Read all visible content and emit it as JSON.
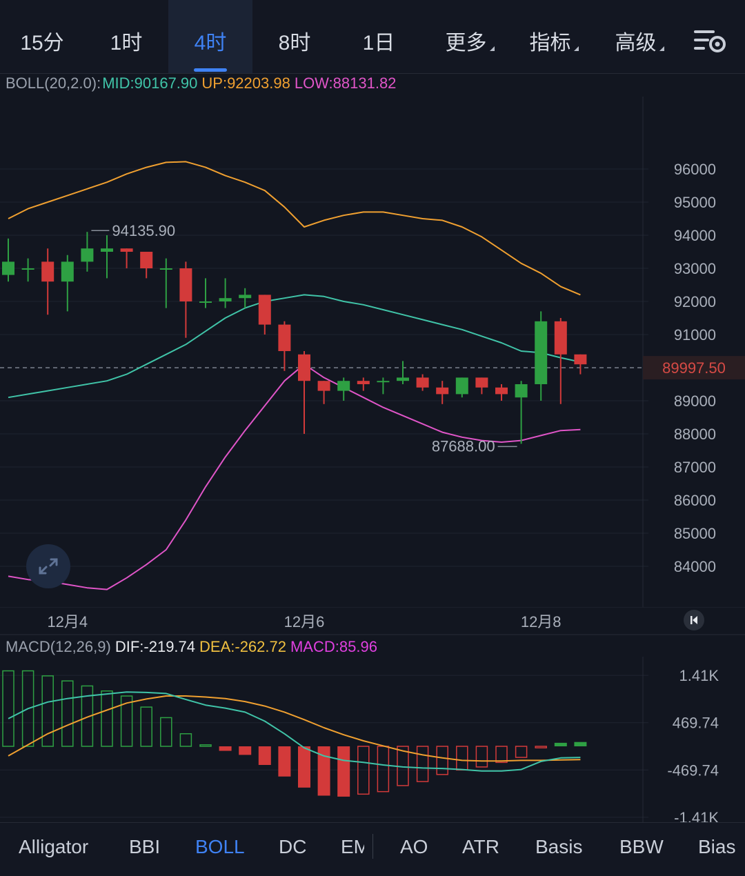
{
  "tabs": [
    {
      "label": "15分",
      "active": false,
      "has_caret": false
    },
    {
      "label": "1时",
      "active": false,
      "has_caret": false
    },
    {
      "label": "4时",
      "active": true,
      "has_caret": false
    },
    {
      "label": "8时",
      "active": false,
      "has_caret": false
    },
    {
      "label": "1日",
      "active": false,
      "has_caret": false
    },
    {
      "label": "更多",
      "active": false,
      "has_caret": true
    },
    {
      "label": "指标",
      "active": false,
      "has_caret": true
    },
    {
      "label": "高级",
      "active": false,
      "has_caret": true
    }
  ],
  "boll_legend": {
    "name": "BOLL(20,2.0):",
    "mid": "MID:90167.90",
    "up": "UP:92203.98",
    "low": "LOW:88131.82"
  },
  "macd_legend": {
    "name": "MACD(12,26,9)",
    "dif": "DIF:-219.74",
    "dea": "DEA:-262.72",
    "macd": "MACD:85.96"
  },
  "colors": {
    "up": "#2ea043",
    "down": "#d33a3a",
    "mid": "#40c4a8",
    "upper": "#f0a030",
    "lower": "#e055c8",
    "accent": "#3f82f4",
    "dif": "#40c4a8",
    "dea": "#f0a030"
  },
  "indicators": [
    {
      "label": "Alligator",
      "active": false
    },
    {
      "label": "BBI",
      "active": false
    },
    {
      "label": "BOLL",
      "active": true
    },
    {
      "label": "DC",
      "active": false
    },
    {
      "label": "EM",
      "active": false
    },
    {
      "label": "AO",
      "active": false
    },
    {
      "label": "ATR",
      "active": false
    },
    {
      "label": "Basis",
      "active": false
    },
    {
      "label": "BBW",
      "active": false
    },
    {
      "label": "Bias",
      "active": false
    }
  ],
  "chart_data": [
    {
      "type": "candlestick",
      "title": "BOLL(20,2.0)",
      "y_ticks": [
        96000,
        95000,
        94000,
        93000,
        92000,
        91000,
        89000,
        88000,
        87000,
        86000,
        85000,
        84000
      ],
      "x_labels": [
        "12月4",
        "12月6",
        "12月8"
      ],
      "current_price": "89997.50",
      "high_marker": "94135.90",
      "low_marker": "87688.00",
      "candles": [
        {
          "o": 92800,
          "h": 93900,
          "l": 92600,
          "c": 93200
        },
        {
          "o": 93000,
          "h": 93300,
          "l": 92600,
          "c": 93000
        },
        {
          "o": 93200,
          "h": 93600,
          "l": 91600,
          "c": 92600
        },
        {
          "o": 92600,
          "h": 93400,
          "l": 91700,
          "c": 93200
        },
        {
          "o": 93200,
          "h": 94100,
          "l": 92900,
          "c": 93600
        },
        {
          "o": 93500,
          "h": 94000,
          "l": 92700,
          "c": 93600
        },
        {
          "o": 93600,
          "h": 93600,
          "l": 93000,
          "c": 93500
        },
        {
          "o": 93500,
          "h": 93500,
          "l": 92700,
          "c": 93000
        },
        {
          "o": 93000,
          "h": 93300,
          "l": 91800,
          "c": 93000
        },
        {
          "o": 93000,
          "h": 93200,
          "l": 90900,
          "c": 92000
        },
        {
          "o": 92000,
          "h": 92700,
          "l": 91800,
          "c": 92000
        },
        {
          "o": 92000,
          "h": 92700,
          "l": 91800,
          "c": 92100
        },
        {
          "o": 92100,
          "h": 92400,
          "l": 91800,
          "c": 92200
        },
        {
          "o": 92200,
          "h": 92200,
          "l": 91000,
          "c": 91300
        },
        {
          "o": 91300,
          "h": 91400,
          "l": 89900,
          "c": 90500
        },
        {
          "o": 90400,
          "h": 90500,
          "l": 88000,
          "c": 89600
        },
        {
          "o": 89600,
          "h": 89600,
          "l": 88900,
          "c": 89300
        },
        {
          "o": 89300,
          "h": 89700,
          "l": 89000,
          "c": 89600
        },
        {
          "o": 89600,
          "h": 89700,
          "l": 89300,
          "c": 89500
        },
        {
          "o": 89600,
          "h": 89700,
          "l": 89200,
          "c": 89600
        },
        {
          "o": 89600,
          "h": 90200,
          "l": 89500,
          "c": 89700
        },
        {
          "o": 89700,
          "h": 89800,
          "l": 89300,
          "c": 89400
        },
        {
          "o": 89400,
          "h": 89600,
          "l": 88900,
          "c": 89200
        },
        {
          "o": 89200,
          "h": 89700,
          "l": 89100,
          "c": 89700
        },
        {
          "o": 89700,
          "h": 89700,
          "l": 89200,
          "c": 89400
        },
        {
          "o": 89400,
          "h": 89500,
          "l": 89000,
          "c": 89200
        },
        {
          "o": 89100,
          "h": 89600,
          "l": 87700,
          "c": 89500
        },
        {
          "o": 89500,
          "h": 91700,
          "l": 89000,
          "c": 91400
        },
        {
          "o": 91400,
          "h": 91500,
          "l": 88900,
          "c": 90400
        },
        {
          "o": 90400,
          "h": 90400,
          "l": 89800,
          "c": 90100
        }
      ],
      "upper": [
        94500,
        94800,
        95000,
        95200,
        95400,
        95600,
        95850,
        96050,
        96200,
        96220,
        96050,
        95800,
        95600,
        95350,
        94850,
        94250,
        94450,
        94600,
        94700,
        94700,
        94600,
        94500,
        94450,
        94250,
        93950,
        93550,
        93150,
        92850,
        92450,
        92200
      ],
      "middle": [
        89100,
        89200,
        89300,
        89400,
        89500,
        89600,
        89800,
        90100,
        90400,
        90700,
        91100,
        91500,
        91800,
        92000,
        92100,
        92200,
        92150,
        92000,
        91900,
        91750,
        91600,
        91450,
        91300,
        91150,
        90950,
        90750,
        90500,
        90450,
        90300,
        90170
      ],
      "lower": [
        83700,
        83600,
        83550,
        83450,
        83350,
        83300,
        83650,
        84050,
        84500,
        85400,
        86400,
        87300,
        88100,
        88850,
        89600,
        90100,
        89700,
        89400,
        89100,
        88800,
        88550,
        88300,
        88050,
        87900,
        87800,
        87750,
        87800,
        87950,
        88100,
        88130
      ]
    },
    {
      "type": "bar",
      "title": "MACD(12,26,9)",
      "y_ticks": [
        "1.41K",
        "469.74",
        "-469.74",
        "-1.41K"
      ],
      "y_values": [
        1410,
        469.74,
        -469.74,
        -1410
      ],
      "histogram": [
        1500,
        1500,
        1400,
        1300,
        1200,
        1100,
        1000,
        780,
        570,
        250,
        30,
        -90,
        -170,
        -370,
        -600,
        -820,
        -980,
        -1000,
        -950,
        -900,
        -780,
        -700,
        -560,
        -470,
        -410,
        -320,
        -220,
        -30,
        70,
        86
      ],
      "dif": [
        550,
        750,
        880,
        950,
        1000,
        1040,
        1080,
        1070,
        1050,
        930,
        820,
        760,
        680,
        500,
        250,
        -30,
        -190,
        -280,
        -320,
        -370,
        -410,
        -430,
        -440,
        -460,
        -490,
        -490,
        -460,
        -300,
        -230,
        -220
      ],
      "dea": [
        -190,
        30,
        250,
        420,
        580,
        720,
        860,
        940,
        1000,
        1000,
        980,
        950,
        890,
        800,
        680,
        530,
        370,
        230,
        110,
        10,
        -90,
        -170,
        -230,
        -280,
        -290,
        -290,
        -280,
        -280,
        -270,
        -263
      ]
    }
  ]
}
